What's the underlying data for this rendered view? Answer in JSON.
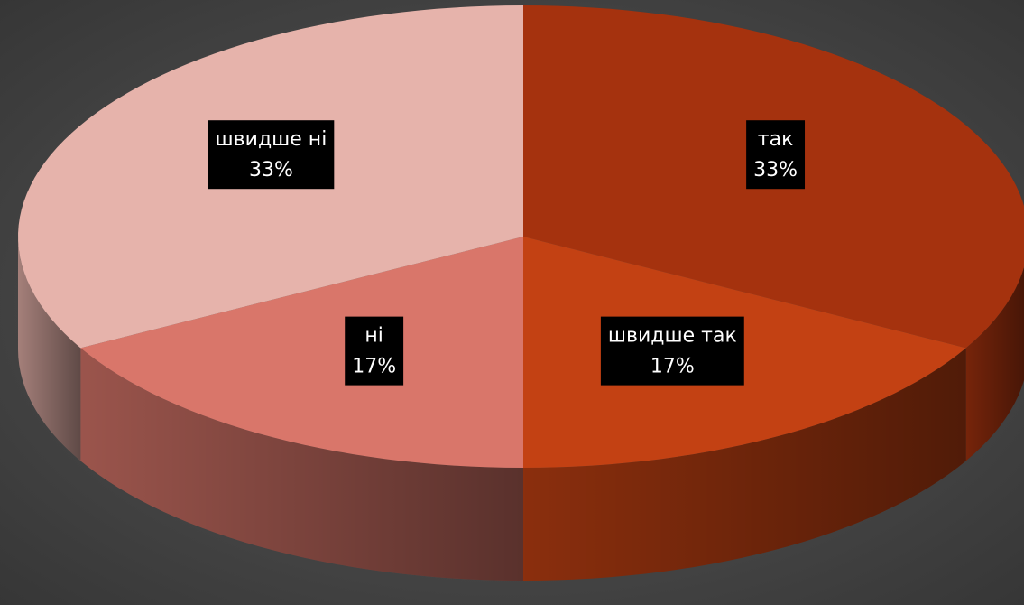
{
  "chart_data": {
    "type": "pie3d",
    "categories": [
      "так",
      "швидше так",
      "ні",
      "швидше ні"
    ],
    "values": [
      33,
      17,
      17,
      33
    ],
    "value_labels": [
      "33%",
      "17%",
      "17%",
      "33%"
    ],
    "colors": [
      "#a5320e",
      "#c34113",
      "#d9766a",
      "#e6b3ab"
    ]
  }
}
